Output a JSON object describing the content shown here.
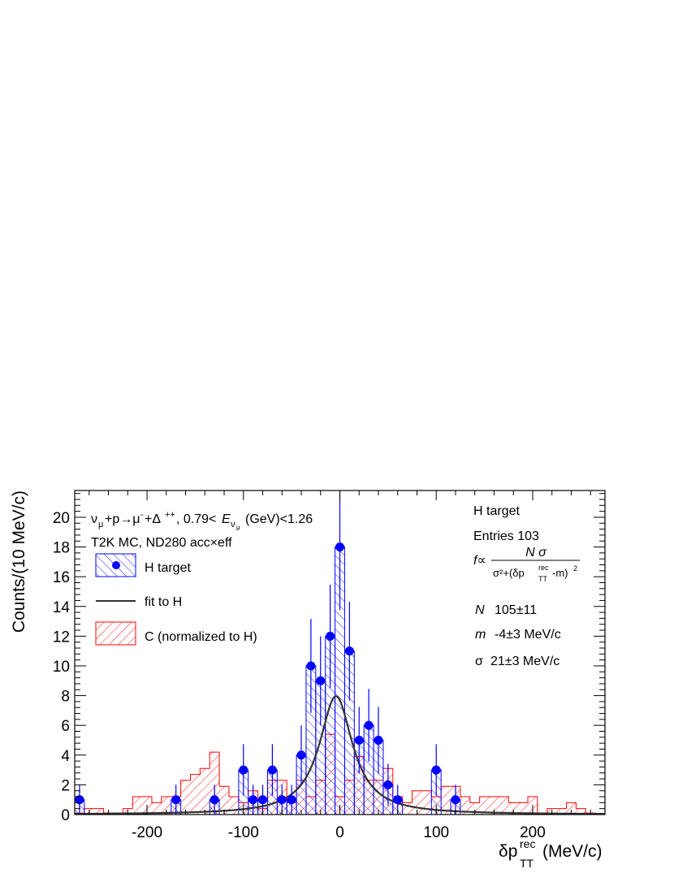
{
  "chart_data": {
    "type": "histogram",
    "xlim": [
      -275,
      275
    ],
    "ylim": [
      0,
      21.8
    ],
    "grid": false,
    "x_ticks": [
      -200,
      -100,
      0,
      100,
      200
    ],
    "y_ticks": [
      0,
      2,
      4,
      6,
      8,
      10,
      12,
      14,
      16,
      18,
      20
    ],
    "ylabel": "Counts/(10 MeV/c)",
    "xlabel": {
      "main": "δp",
      "sup": "rec",
      "sub": "TT",
      "unit": "(MeV/c)"
    },
    "annotations": {
      "reaction": "ν_μ+p→μ⁻+Δ⁺⁺, 0.79<E_νμ(GeV)<1.26",
      "reaction_main": "ν",
      "reaction_sub": "μ",
      "reaction_mid": "+p→μ",
      "reaction_sup1": "-",
      "reaction_plus": "+Δ",
      "reaction_sup2": "++",
      "reaction_range1": ", 0.79<",
      "reaction_E": "E",
      "reaction_Esub": "ν",
      "reaction_Esubsub": "μ",
      "reaction_range2": "(GeV)<1.26",
      "mc_line": "T2K MC, ND280 acc×eff"
    },
    "legend": {
      "placement": "top-left",
      "entries": [
        "H target",
        "fit to H",
        "C (normalized to H)"
      ]
    },
    "stats_box": {
      "placement": "top-right",
      "title": "H target",
      "entries_label": "Entries 103",
      "formula": {
        "lhs": "f∝",
        "numerator": "N σ",
        "denominator_pre": "σ²+(δp",
        "denominator_sup": "rec",
        "denominator_sub": "TT",
        "denominator_post": "-m)",
        "denominator_pow": "2"
      },
      "params": [
        {
          "symbol": "N",
          "value": "105±11"
        },
        {
          "symbol": "m",
          "value": "-4±3 MeV/c"
        },
        {
          "symbol": "σ",
          "value": "21±3 MeV/c"
        }
      ]
    },
    "fit": {
      "function": "lorentzian",
      "N": 105,
      "m": -4,
      "sigma": 21,
      "bin_width": 10
    },
    "series": [
      {
        "name": "H target",
        "style": "points-with-errors-and-hatched-histogram",
        "color": "#0000ff",
        "bin_centers": [
          -270,
          -170,
          -130,
          -100,
          -90,
          -80,
          -70,
          -60,
          -50,
          -40,
          -30,
          -20,
          -10,
          0,
          10,
          20,
          30,
          40,
          50,
          60,
          100,
          120
        ],
        "values": [
          1,
          1,
          1,
          3,
          1,
          1,
          3,
          1,
          1,
          4,
          10,
          9,
          12,
          18,
          11,
          5,
          6,
          5,
          2,
          1,
          3,
          1
        ]
      },
      {
        "name": "C (normalized to H)",
        "style": "hatched-step-histogram",
        "color": "#ff0000",
        "bin_edges": [
          -275,
          -265,
          -245,
          -225,
          -215,
          -205,
          -195,
          -185,
          -175,
          -165,
          -155,
          -145,
          -135,
          -125,
          -115,
          -105,
          -95,
          -85,
          -75,
          -65,
          -55,
          -45,
          -35,
          -25,
          -15,
          -5,
          5,
          15,
          25,
          35,
          45,
          55,
          65,
          75,
          85,
          95,
          105,
          115,
          125,
          135,
          145,
          155,
          165,
          175,
          185,
          195,
          205,
          215,
          225,
          235,
          245,
          255,
          265,
          275
        ],
        "values": [
          0.1,
          0.4,
          0.1,
          0.4,
          1.2,
          1.2,
          0.8,
          1.2,
          1.2,
          2.3,
          2.7,
          3.1,
          4.2,
          1.9,
          1.2,
          0.8,
          1.6,
          0.4,
          2.3,
          2.3,
          0.8,
          2.3,
          1.2,
          2.3,
          5.4,
          1.2,
          2.3,
          3.9,
          2.3,
          2.3,
          3.1,
          1.2,
          0.8,
          1.6,
          1.6,
          1.2,
          1.9,
          1.9,
          1.2,
          0.8,
          1.2,
          1.2,
          1.2,
          0.8,
          0.8,
          1.2,
          0.1,
          0.4,
          0.4,
          0.8,
          0.4,
          0.1,
          0.0
        ]
      }
    ]
  }
}
